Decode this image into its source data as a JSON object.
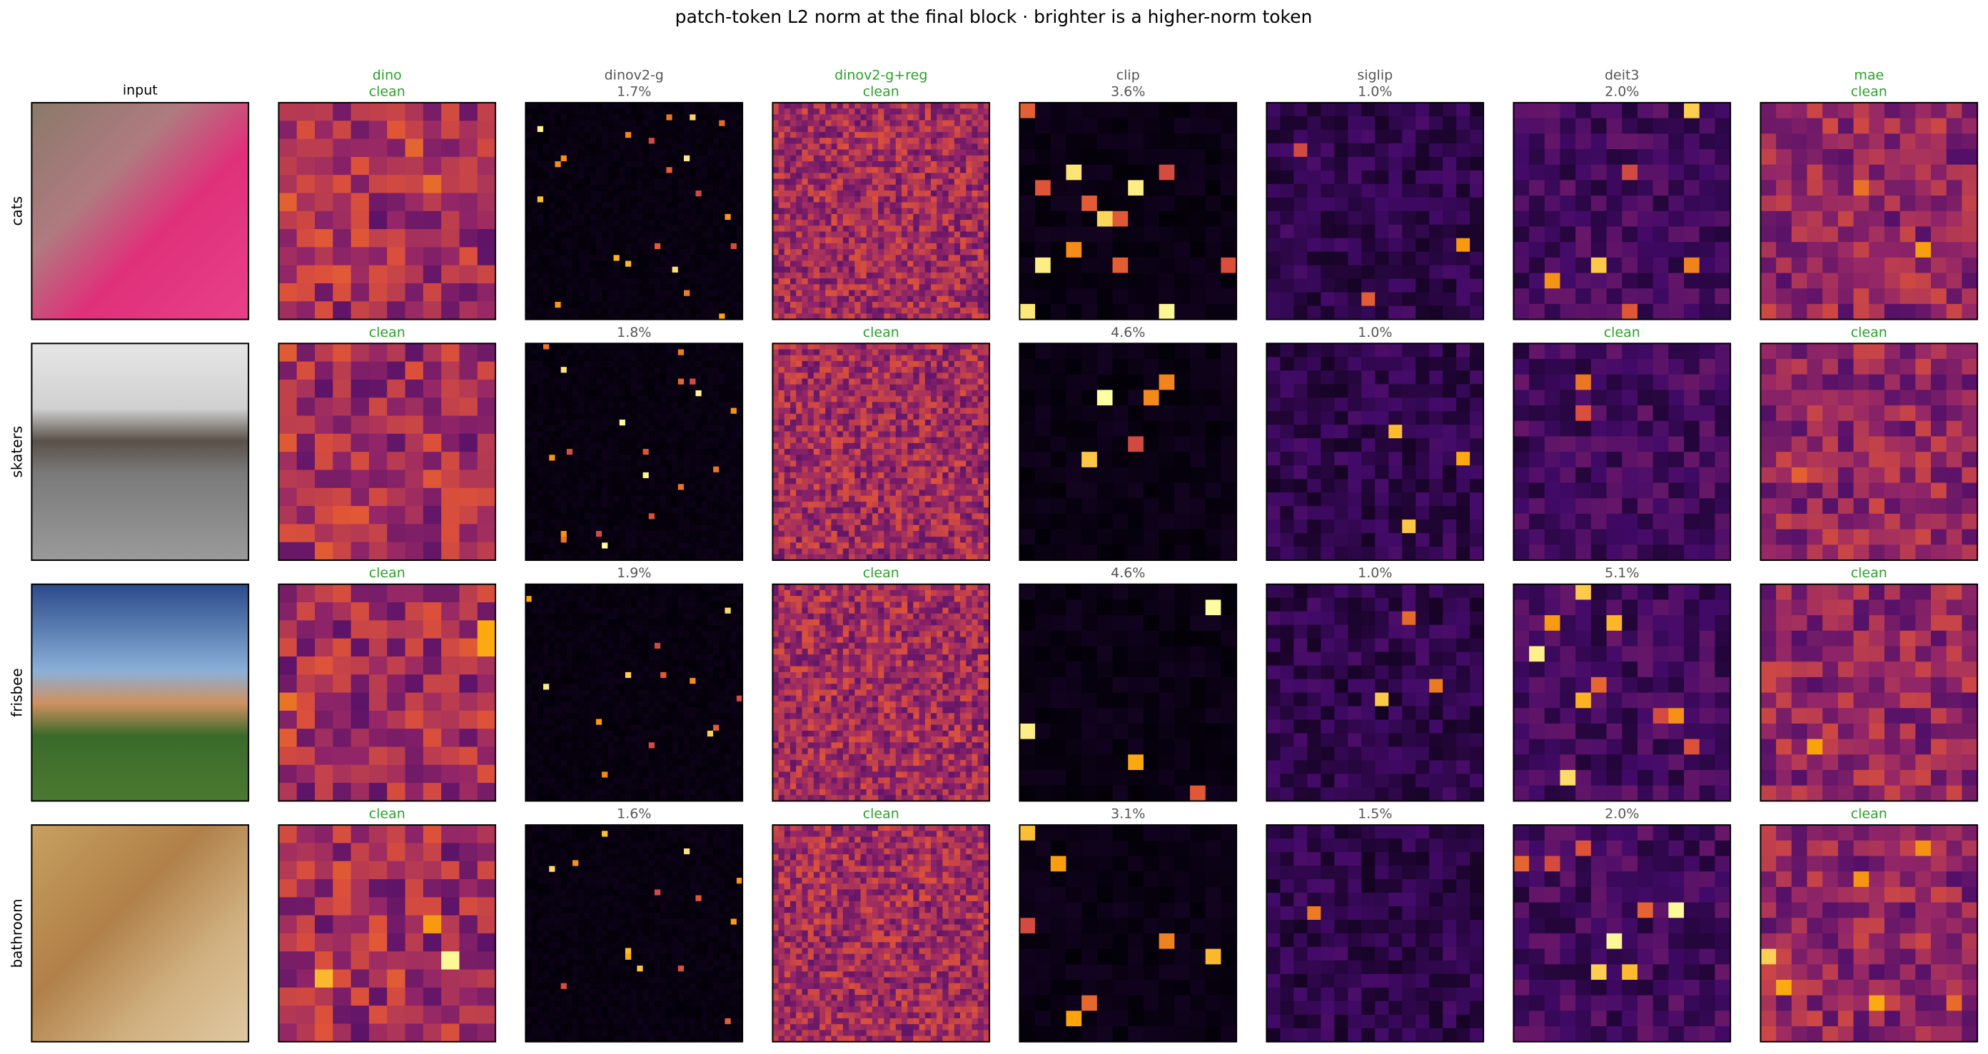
{
  "title": "patch-token L2 norm at the final block · brighter is a higher-norm token",
  "columns": [
    {
      "name": "input",
      "color": "#000000"
    },
    {
      "name": "dino",
      "color": "#2ca02c"
    },
    {
      "name": "dinov2-g",
      "color": "#555555"
    },
    {
      "name": "dinov2-g+reg",
      "color": "#2ca02c"
    },
    {
      "name": "clip",
      "color": "#555555"
    },
    {
      "name": "siglip",
      "color": "#555555"
    },
    {
      "name": "deit3",
      "color": "#555555"
    },
    {
      "name": "mae",
      "color": "#2ca02c"
    }
  ],
  "rows": [
    {
      "name": "cats",
      "cells": [
        {
          "label": "clean",
          "color": "#2ca02c"
        },
        {
          "label": "1.7%",
          "color": "#555555"
        },
        {
          "label": "clean",
          "color": "#2ca02c"
        },
        {
          "label": "3.6%",
          "color": "#555555"
        },
        {
          "label": "1.0%",
          "color": "#555555"
        },
        {
          "label": "2.0%",
          "color": "#555555"
        },
        {
          "label": "clean",
          "color": "#2ca02c"
        }
      ]
    },
    {
      "name": "skaters",
      "cells": [
        {
          "label": "clean",
          "color": "#2ca02c"
        },
        {
          "label": "1.8%",
          "color": "#555555"
        },
        {
          "label": "clean",
          "color": "#2ca02c"
        },
        {
          "label": "4.6%",
          "color": "#555555"
        },
        {
          "label": "1.0%",
          "color": "#555555"
        },
        {
          "label": "clean",
          "color": "#2ca02c"
        },
        {
          "label": "clean",
          "color": "#2ca02c"
        }
      ]
    },
    {
      "name": "frisbee",
      "cells": [
        {
          "label": "clean",
          "color": "#2ca02c"
        },
        {
          "label": "1.9%",
          "color": "#555555"
        },
        {
          "label": "clean",
          "color": "#2ca02c"
        },
        {
          "label": "4.6%",
          "color": "#555555"
        },
        {
          "label": "1.0%",
          "color": "#555555"
        },
        {
          "label": "5.1%",
          "color": "#555555"
        },
        {
          "label": "clean",
          "color": "#2ca02c"
        }
      ]
    },
    {
      "name": "bathroom",
      "cells": [
        {
          "label": "clean",
          "color": "#2ca02c"
        },
        {
          "label": "1.6%",
          "color": "#555555"
        },
        {
          "label": "clean",
          "color": "#2ca02c"
        },
        {
          "label": "3.1%",
          "color": "#555555"
        },
        {
          "label": "1.5%",
          "color": "#555555"
        },
        {
          "label": "2.0%",
          "color": "#555555"
        },
        {
          "label": "clean",
          "color": "#2ca02c"
        }
      ]
    }
  ]
}
